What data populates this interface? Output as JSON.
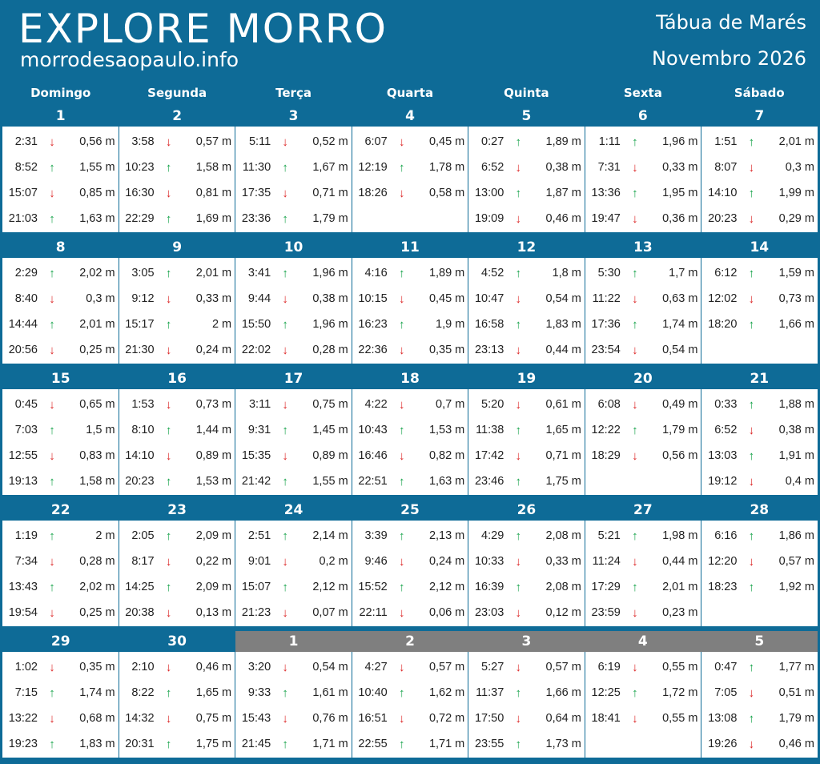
{
  "header": {
    "brand": "EXPLORE MORRO",
    "site": "morrodesaopaulo.info",
    "title": "Tábua de Marés",
    "month": "Novembro 2026"
  },
  "colors": {
    "header_bg": "#0e6b97",
    "other_month_bg": "#7f7f7f",
    "up": "#16a34a",
    "down": "#dc2626"
  },
  "icons": {
    "up": "arrow-up-icon",
    "down": "arrow-down-icon"
  },
  "weekdays": [
    "Domingo",
    "Segunda",
    "Terça",
    "Quarta",
    "Quinta",
    "Sexta",
    "Sábado"
  ],
  "weeks": [
    {
      "days": [
        {
          "n": "1",
          "tides": [
            {
              "t": "2:31",
              "d": "down",
              "h": "0,56 m"
            },
            {
              "t": "8:52",
              "d": "up",
              "h": "1,55 m"
            },
            {
              "t": "15:07",
              "d": "down",
              "h": "0,85 m"
            },
            {
              "t": "21:03",
              "d": "up",
              "h": "1,63 m"
            }
          ]
        },
        {
          "n": "2",
          "tides": [
            {
              "t": "3:58",
              "d": "down",
              "h": "0,57 m"
            },
            {
              "t": "10:23",
              "d": "up",
              "h": "1,58 m"
            },
            {
              "t": "16:30",
              "d": "down",
              "h": "0,81 m"
            },
            {
              "t": "22:29",
              "d": "up",
              "h": "1,69 m"
            }
          ]
        },
        {
          "n": "3",
          "tides": [
            {
              "t": "5:11",
              "d": "down",
              "h": "0,52 m"
            },
            {
              "t": "11:30",
              "d": "up",
              "h": "1,67 m"
            },
            {
              "t": "17:35",
              "d": "down",
              "h": "0,71 m"
            },
            {
              "t": "23:36",
              "d": "up",
              "h": "1,79 m"
            }
          ]
        },
        {
          "n": "4",
          "tides": [
            {
              "t": "6:07",
              "d": "down",
              "h": "0,45 m"
            },
            {
              "t": "12:19",
              "d": "up",
              "h": "1,78 m"
            },
            {
              "t": "18:26",
              "d": "down",
              "h": "0,58 m"
            }
          ]
        },
        {
          "n": "5",
          "tides": [
            {
              "t": "0:27",
              "d": "up",
              "h": "1,89 m"
            },
            {
              "t": "6:52",
              "d": "down",
              "h": "0,38 m"
            },
            {
              "t": "13:00",
              "d": "up",
              "h": "1,87 m"
            },
            {
              "t": "19:09",
              "d": "down",
              "h": "0,46 m"
            }
          ]
        },
        {
          "n": "6",
          "tides": [
            {
              "t": "1:11",
              "d": "up",
              "h": "1,96 m"
            },
            {
              "t": "7:31",
              "d": "down",
              "h": "0,33 m"
            },
            {
              "t": "13:36",
              "d": "up",
              "h": "1,95 m"
            },
            {
              "t": "19:47",
              "d": "down",
              "h": "0,36 m"
            }
          ]
        },
        {
          "n": "7",
          "tides": [
            {
              "t": "1:51",
              "d": "up",
              "h": "2,01 m"
            },
            {
              "t": "8:07",
              "d": "down",
              "h": "0,3 m"
            },
            {
              "t": "14:10",
              "d": "up",
              "h": "1,99 m"
            },
            {
              "t": "20:23",
              "d": "down",
              "h": "0,29 m"
            }
          ]
        }
      ]
    },
    {
      "days": [
        {
          "n": "8",
          "tides": [
            {
              "t": "2:29",
              "d": "up",
              "h": "2,02 m"
            },
            {
              "t": "8:40",
              "d": "down",
              "h": "0,3 m"
            },
            {
              "t": "14:44",
              "d": "up",
              "h": "2,01 m"
            },
            {
              "t": "20:56",
              "d": "down",
              "h": "0,25 m"
            }
          ]
        },
        {
          "n": "9",
          "tides": [
            {
              "t": "3:05",
              "d": "up",
              "h": "2,01 m"
            },
            {
              "t": "9:12",
              "d": "down",
              "h": "0,33 m"
            },
            {
              "t": "15:17",
              "d": "up",
              "h": "2 m"
            },
            {
              "t": "21:30",
              "d": "down",
              "h": "0,24 m"
            }
          ]
        },
        {
          "n": "10",
          "tides": [
            {
              "t": "3:41",
              "d": "up",
              "h": "1,96 m"
            },
            {
              "t": "9:44",
              "d": "down",
              "h": "0,38 m"
            },
            {
              "t": "15:50",
              "d": "up",
              "h": "1,96 m"
            },
            {
              "t": "22:02",
              "d": "down",
              "h": "0,28 m"
            }
          ]
        },
        {
          "n": "11",
          "tides": [
            {
              "t": "4:16",
              "d": "up",
              "h": "1,89 m"
            },
            {
              "t": "10:15",
              "d": "down",
              "h": "0,45 m"
            },
            {
              "t": "16:23",
              "d": "up",
              "h": "1,9 m"
            },
            {
              "t": "22:36",
              "d": "down",
              "h": "0,35 m"
            }
          ]
        },
        {
          "n": "12",
          "tides": [
            {
              "t": "4:52",
              "d": "up",
              "h": "1,8 m"
            },
            {
              "t": "10:47",
              "d": "down",
              "h": "0,54 m"
            },
            {
              "t": "16:58",
              "d": "up",
              "h": "1,83 m"
            },
            {
              "t": "23:13",
              "d": "down",
              "h": "0,44 m"
            }
          ]
        },
        {
          "n": "13",
          "tides": [
            {
              "t": "5:30",
              "d": "up",
              "h": "1,7 m"
            },
            {
              "t": "11:22",
              "d": "down",
              "h": "0,63 m"
            },
            {
              "t": "17:36",
              "d": "up",
              "h": "1,74 m"
            },
            {
              "t": "23:54",
              "d": "down",
              "h": "0,54 m"
            }
          ]
        },
        {
          "n": "14",
          "tides": [
            {
              "t": "6:12",
              "d": "up",
              "h": "1,59 m"
            },
            {
              "t": "12:02",
              "d": "down",
              "h": "0,73 m"
            },
            {
              "t": "18:20",
              "d": "up",
              "h": "1,66 m"
            }
          ]
        }
      ]
    },
    {
      "days": [
        {
          "n": "15",
          "tides": [
            {
              "t": "0:45",
              "d": "down",
              "h": "0,65 m"
            },
            {
              "t": "7:03",
              "d": "up",
              "h": "1,5 m"
            },
            {
              "t": "12:55",
              "d": "down",
              "h": "0,83 m"
            },
            {
              "t": "19:13",
              "d": "up",
              "h": "1,58 m"
            }
          ]
        },
        {
          "n": "16",
          "tides": [
            {
              "t": "1:53",
              "d": "down",
              "h": "0,73 m"
            },
            {
              "t": "8:10",
              "d": "up",
              "h": "1,44 m"
            },
            {
              "t": "14:10",
              "d": "down",
              "h": "0,89 m"
            },
            {
              "t": "20:23",
              "d": "up",
              "h": "1,53 m"
            }
          ]
        },
        {
          "n": "17",
          "tides": [
            {
              "t": "3:11",
              "d": "down",
              "h": "0,75 m"
            },
            {
              "t": "9:31",
              "d": "up",
              "h": "1,45 m"
            },
            {
              "t": "15:35",
              "d": "down",
              "h": "0,89 m"
            },
            {
              "t": "21:42",
              "d": "up",
              "h": "1,55 m"
            }
          ]
        },
        {
          "n": "18",
          "tides": [
            {
              "t": "4:22",
              "d": "down",
              "h": "0,7 m"
            },
            {
              "t": "10:43",
              "d": "up",
              "h": "1,53 m"
            },
            {
              "t": "16:46",
              "d": "down",
              "h": "0,82 m"
            },
            {
              "t": "22:51",
              "d": "up",
              "h": "1,63 m"
            }
          ]
        },
        {
          "n": "19",
          "tides": [
            {
              "t": "5:20",
              "d": "down",
              "h": "0,61 m"
            },
            {
              "t": "11:38",
              "d": "up",
              "h": "1,65 m"
            },
            {
              "t": "17:42",
              "d": "down",
              "h": "0,71 m"
            },
            {
              "t": "23:46",
              "d": "up",
              "h": "1,75 m"
            }
          ]
        },
        {
          "n": "20",
          "tides": [
            {
              "t": "6:08",
              "d": "down",
              "h": "0,49 m"
            },
            {
              "t": "12:22",
              "d": "up",
              "h": "1,79 m"
            },
            {
              "t": "18:29",
              "d": "down",
              "h": "0,56 m"
            }
          ]
        },
        {
          "n": "21",
          "tides": [
            {
              "t": "0:33",
              "d": "up",
              "h": "1,88 m"
            },
            {
              "t": "6:52",
              "d": "down",
              "h": "0,38 m"
            },
            {
              "t": "13:03",
              "d": "up",
              "h": "1,91 m"
            },
            {
              "t": "19:12",
              "d": "down",
              "h": "0,4 m"
            }
          ]
        }
      ]
    },
    {
      "days": [
        {
          "n": "22",
          "tides": [
            {
              "t": "1:19",
              "d": "up",
              "h": "2 m"
            },
            {
              "t": "7:34",
              "d": "down",
              "h": "0,28 m"
            },
            {
              "t": "13:43",
              "d": "up",
              "h": "2,02 m"
            },
            {
              "t": "19:54",
              "d": "down",
              "h": "0,25 m"
            }
          ]
        },
        {
          "n": "23",
          "tides": [
            {
              "t": "2:05",
              "d": "up",
              "h": "2,09 m"
            },
            {
              "t": "8:17",
              "d": "down",
              "h": "0,22 m"
            },
            {
              "t": "14:25",
              "d": "up",
              "h": "2,09 m"
            },
            {
              "t": "20:38",
              "d": "down",
              "h": "0,13 m"
            }
          ]
        },
        {
          "n": "24",
          "tides": [
            {
              "t": "2:51",
              "d": "up",
              "h": "2,14 m"
            },
            {
              "t": "9:01",
              "d": "down",
              "h": "0,2 m"
            },
            {
              "t": "15:07",
              "d": "up",
              "h": "2,12 m"
            },
            {
              "t": "21:23",
              "d": "down",
              "h": "0,07 m"
            }
          ]
        },
        {
          "n": "25",
          "tides": [
            {
              "t": "3:39",
              "d": "up",
              "h": "2,13 m"
            },
            {
              "t": "9:46",
              "d": "down",
              "h": "0,24 m"
            },
            {
              "t": "15:52",
              "d": "up",
              "h": "2,12 m"
            },
            {
              "t": "22:11",
              "d": "down",
              "h": "0,06 m"
            }
          ]
        },
        {
          "n": "26",
          "tides": [
            {
              "t": "4:29",
              "d": "up",
              "h": "2,08 m"
            },
            {
              "t": "10:33",
              "d": "down",
              "h": "0,33 m"
            },
            {
              "t": "16:39",
              "d": "up",
              "h": "2,08 m"
            },
            {
              "t": "23:03",
              "d": "down",
              "h": "0,12 m"
            }
          ]
        },
        {
          "n": "27",
          "tides": [
            {
              "t": "5:21",
              "d": "up",
              "h": "1,98 m"
            },
            {
              "t": "11:24",
              "d": "down",
              "h": "0,44 m"
            },
            {
              "t": "17:29",
              "d": "up",
              "h": "2,01 m"
            },
            {
              "t": "23:59",
              "d": "down",
              "h": "0,23 m"
            }
          ]
        },
        {
          "n": "28",
          "tides": [
            {
              "t": "6:16",
              "d": "up",
              "h": "1,86 m"
            },
            {
              "t": "12:20",
              "d": "down",
              "h": "0,57 m"
            },
            {
              "t": "18:23",
              "d": "up",
              "h": "1,92 m"
            }
          ]
        }
      ]
    },
    {
      "days": [
        {
          "n": "29",
          "tides": [
            {
              "t": "1:02",
              "d": "down",
              "h": "0,35 m"
            },
            {
              "t": "7:15",
              "d": "up",
              "h": "1,74 m"
            },
            {
              "t": "13:22",
              "d": "down",
              "h": "0,68 m"
            },
            {
              "t": "19:23",
              "d": "up",
              "h": "1,83 m"
            }
          ]
        },
        {
          "n": "30",
          "tides": [
            {
              "t": "2:10",
              "d": "down",
              "h": "0,46 m"
            },
            {
              "t": "8:22",
              "d": "up",
              "h": "1,65 m"
            },
            {
              "t": "14:32",
              "d": "down",
              "h": "0,75 m"
            },
            {
              "t": "20:31",
              "d": "up",
              "h": "1,75 m"
            }
          ]
        },
        {
          "n": "1",
          "other": true,
          "tides": [
            {
              "t": "3:20",
              "d": "down",
              "h": "0,54 m"
            },
            {
              "t": "9:33",
              "d": "up",
              "h": "1,61 m"
            },
            {
              "t": "15:43",
              "d": "down",
              "h": "0,76 m"
            },
            {
              "t": "21:45",
              "d": "up",
              "h": "1,71 m"
            }
          ]
        },
        {
          "n": "2",
          "other": true,
          "tides": [
            {
              "t": "4:27",
              "d": "down",
              "h": "0,57 m"
            },
            {
              "t": "10:40",
              "d": "up",
              "h": "1,62 m"
            },
            {
              "t": "16:51",
              "d": "down",
              "h": "0,72 m"
            },
            {
              "t": "22:55",
              "d": "up",
              "h": "1,71 m"
            }
          ]
        },
        {
          "n": "3",
          "other": true,
          "tides": [
            {
              "t": "5:27",
              "d": "down",
              "h": "0,57 m"
            },
            {
              "t": "11:37",
              "d": "up",
              "h": "1,66 m"
            },
            {
              "t": "17:50",
              "d": "down",
              "h": "0,64 m"
            },
            {
              "t": "23:55",
              "d": "up",
              "h": "1,73 m"
            }
          ]
        },
        {
          "n": "4",
          "other": true,
          "tides": [
            {
              "t": "6:19",
              "d": "down",
              "h": "0,55 m"
            },
            {
              "t": "12:25",
              "d": "up",
              "h": "1,72 m"
            },
            {
              "t": "18:41",
              "d": "down",
              "h": "0,55 m"
            }
          ]
        },
        {
          "n": "5",
          "other": true,
          "tides": [
            {
              "t": "0:47",
              "d": "up",
              "h": "1,77 m"
            },
            {
              "t": "7:05",
              "d": "down",
              "h": "0,51 m"
            },
            {
              "t": "13:08",
              "d": "up",
              "h": "1,79 m"
            },
            {
              "t": "19:26",
              "d": "down",
              "h": "0,46 m"
            }
          ]
        }
      ]
    }
  ]
}
